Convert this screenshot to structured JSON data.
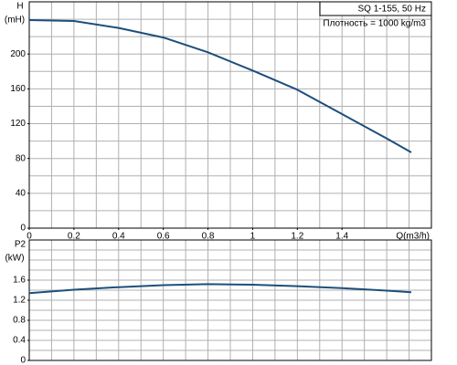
{
  "chart_data": [
    {
      "type": "line",
      "ylabel": "H",
      "yunit": "(mH)",
      "xlabel": "Q(m3/h)",
      "annotations": [
        "SQ 1-155, 50 Hz",
        "Плотность = 1000 kg/m3"
      ],
      "x": [
        0,
        0.2,
        0.4,
        0.6,
        0.8,
        1.0,
        1.2,
        1.4,
        1.6,
        1.71
      ],
      "series": [
        {
          "color": "#1c4f7c",
          "values": [
            239,
            238,
            230,
            219,
            202,
            181,
            159,
            131,
            103,
            87
          ]
        }
      ],
      "xlim": [
        0,
        1.8
      ],
      "xticks": [
        0,
        0.2,
        0.4,
        0.6,
        0.8,
        1,
        1.2,
        1.4
      ],
      "ylim": [
        0,
        260
      ],
      "yticks": [
        0,
        40,
        80,
        120,
        160,
        200
      ],
      "grid": true,
      "xminor": 0.1,
      "yminor": 20
    },
    {
      "type": "line",
      "ylabel": "P2",
      "yunit": "(kW)",
      "x": [
        0,
        0.2,
        0.4,
        0.6,
        0.8,
        1.0,
        1.2,
        1.4,
        1.6,
        1.71
      ],
      "series": [
        {
          "color": "#1c4f7c",
          "values": [
            1.34,
            1.41,
            1.46,
            1.5,
            1.52,
            1.51,
            1.48,
            1.44,
            1.39,
            1.36
          ]
        }
      ],
      "xlim": [
        0,
        1.8
      ],
      "ylim": [
        0,
        2.4
      ],
      "yticks": [
        0,
        0.4,
        0.8,
        1.2,
        1.6
      ],
      "grid": true,
      "xminor": 0.1,
      "yminor": 0.2
    }
  ]
}
